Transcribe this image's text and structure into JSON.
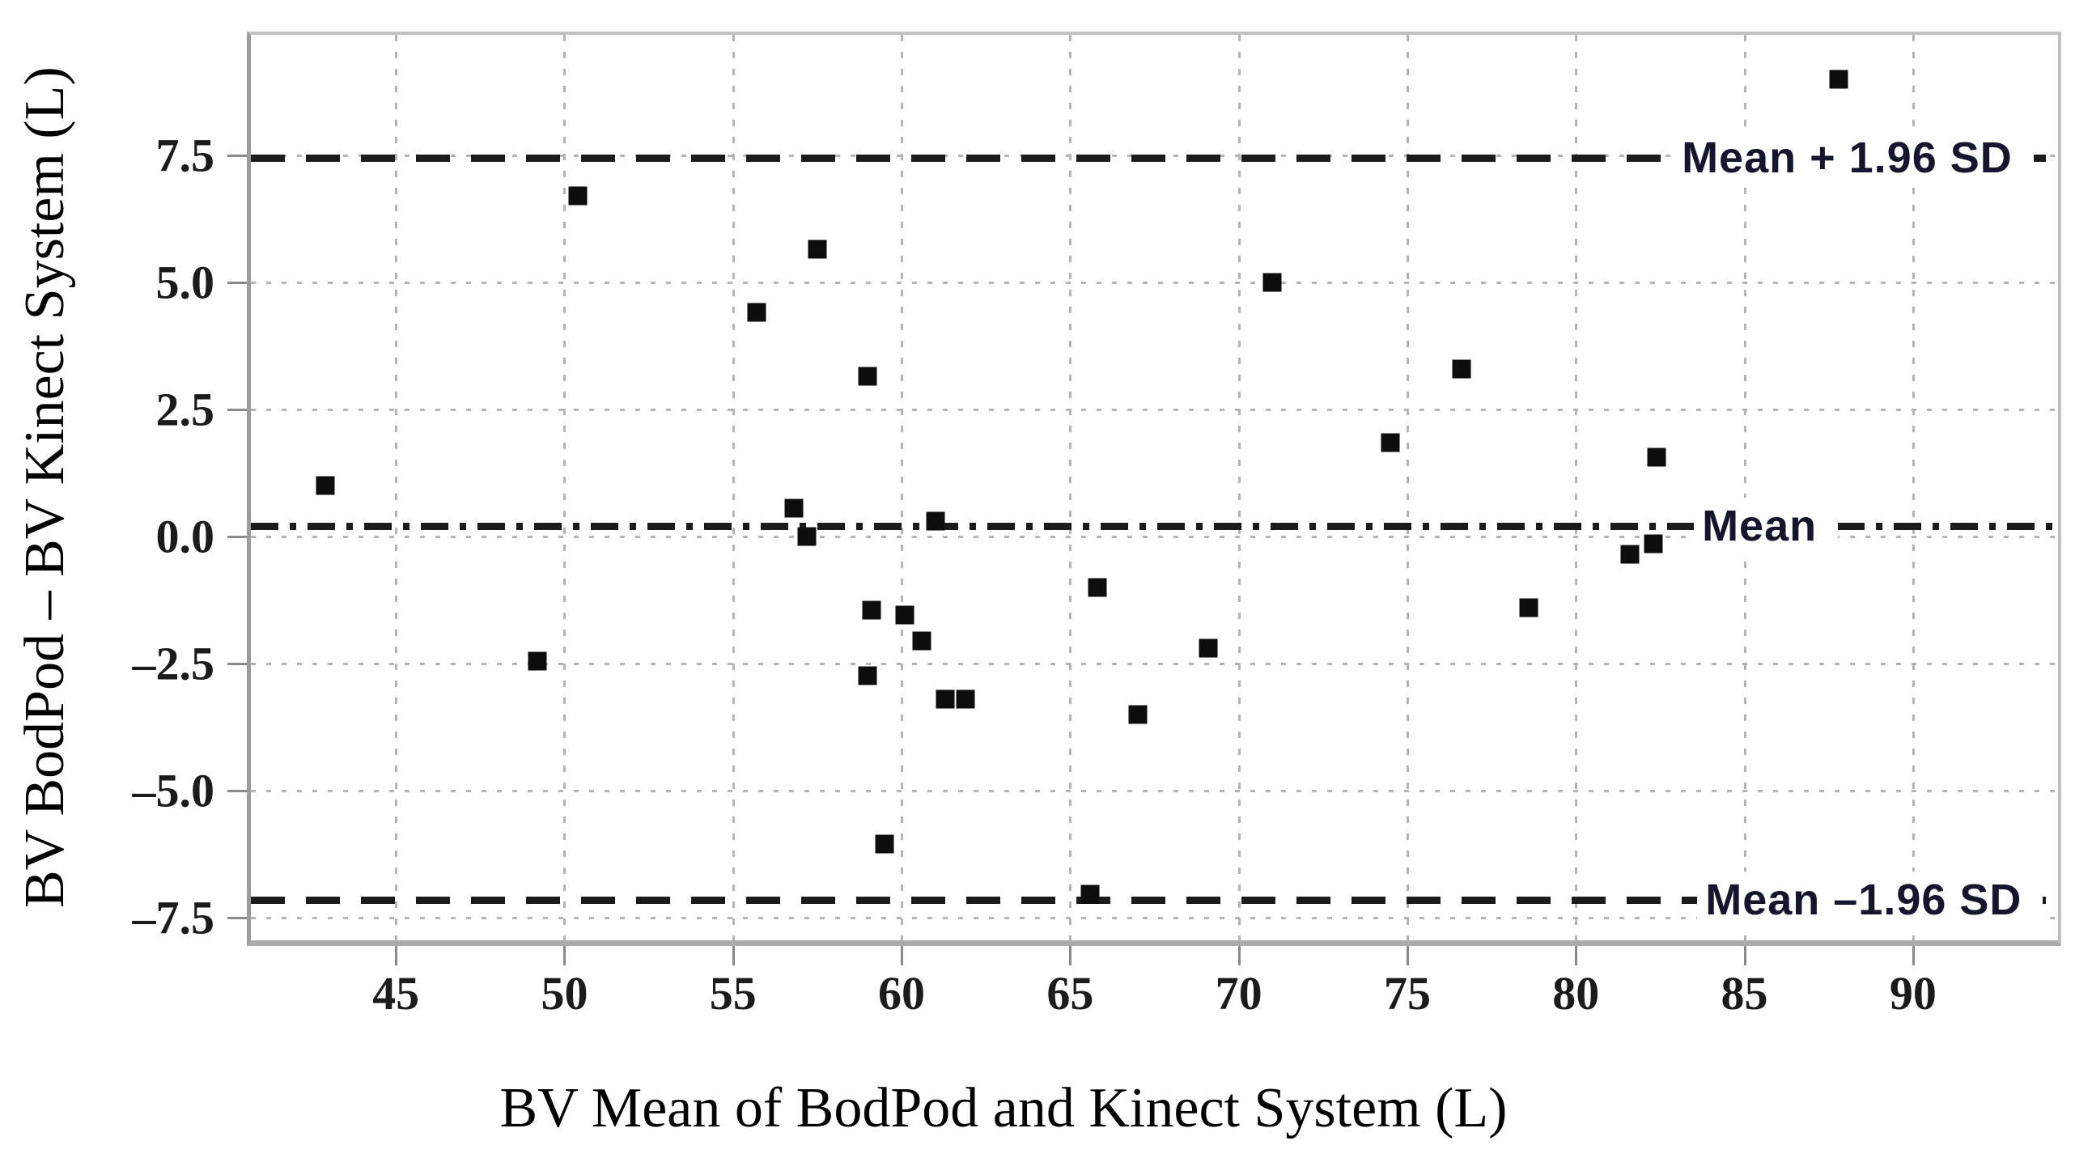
{
  "figure": {
    "y_axis_title": "BV BodPod – BV Kinect System (L)",
    "x_axis_title": "BV Mean of BodPod and Kinect System (L)"
  },
  "chart_data": {
    "type": "scatter",
    "title": "",
    "xlabel": "BV Mean of BodPod and Kinect System (L)",
    "ylabel": "BV BodPod – BV Kinect System (L)",
    "xlim": [
      40.7,
      94.3
    ],
    "ylim": [
      -7.95,
      9.87
    ],
    "x_ticks": [
      45,
      50,
      55,
      60,
      65,
      70,
      75,
      80,
      85,
      90
    ],
    "y_ticks": [
      7.5,
      5.0,
      2.5,
      0.0,
      -2.5,
      -5.0,
      -7.5
    ],
    "y_tick_labels": [
      "7.5",
      "5.0",
      "2.5",
      "0.0",
      "–2.5",
      "–5.0",
      "–7.5"
    ],
    "grid": true,
    "legend_position": "none",
    "marker": "black-square",
    "points": [
      [
        42.9,
        1.0
      ],
      [
        49.2,
        -2.45
      ],
      [
        50.4,
        6.7
      ],
      [
        55.7,
        4.4
      ],
      [
        56.8,
        0.55
      ],
      [
        57.2,
        0.0
      ],
      [
        57.5,
        5.65
      ],
      [
        59.0,
        3.15
      ],
      [
        59.0,
        -2.75
      ],
      [
        59.1,
        -1.45
      ],
      [
        59.5,
        -6.05
      ],
      [
        60.1,
        -1.55
      ],
      [
        60.6,
        -2.05
      ],
      [
        61.0,
        0.3
      ],
      [
        61.3,
        -3.2
      ],
      [
        61.9,
        -3.2
      ],
      [
        65.6,
        -7.05
      ],
      [
        65.8,
        -1.0
      ],
      [
        67.0,
        -3.5
      ],
      [
        69.1,
        -2.2
      ],
      [
        71.0,
        5.0
      ],
      [
        74.5,
        1.85
      ],
      [
        76.6,
        3.3
      ],
      [
        78.6,
        -1.4
      ],
      [
        81.6,
        -0.35
      ],
      [
        82.3,
        -0.15
      ],
      [
        82.4,
        1.55
      ],
      [
        87.8,
        9.0
      ]
    ],
    "reference_lines": [
      {
        "label": "Mean + 1.96 SD",
        "value": 7.45,
        "style": "dashed",
        "label_x": 82.9
      },
      {
        "label": "Mean",
        "value": 0.2,
        "style": "dash-dot",
        "label_x": 83.5
      },
      {
        "label": "Mean –1.96 SD",
        "value": -7.15,
        "style": "dashed",
        "label_x": 83.6
      }
    ],
    "colors": {
      "marker": "#0d0d0d",
      "reference_line": "#1b1b1b",
      "grid": "#b4b4b4",
      "axis_border": "#9c9c9c",
      "tick_text": "#1b1b1b",
      "reference_label_text": "#15152e"
    }
  }
}
